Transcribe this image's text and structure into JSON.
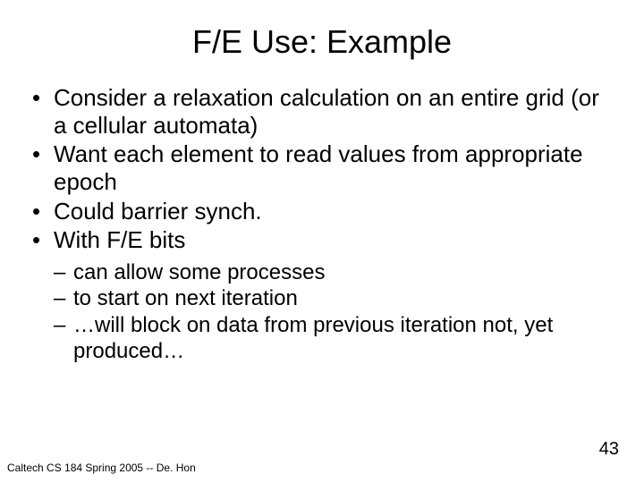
{
  "slide": {
    "title": "F/E Use: Example",
    "bullets": [
      "Consider a relaxation calculation on an entire grid (or a cellular automata)",
      "Want each element to read values from appropriate epoch",
      "Could barrier synch.",
      "With F/E bits"
    ],
    "sub_bullets": [
      "can allow some processes",
      "to start on next iteration",
      "…will block on data from previous iteration not, yet produced…"
    ],
    "footer": "Caltech CS 184 Spring 2005 -- De. Hon",
    "page_number": "43"
  },
  "style": {
    "background_color": "#ffffff",
    "text_color": "#000000",
    "title_fontsize": 36,
    "bullet_fontsize": 26,
    "sub_bullet_fontsize": 24,
    "footer_fontsize": 12,
    "page_num_fontsize": 20,
    "font_family": "Arial"
  }
}
